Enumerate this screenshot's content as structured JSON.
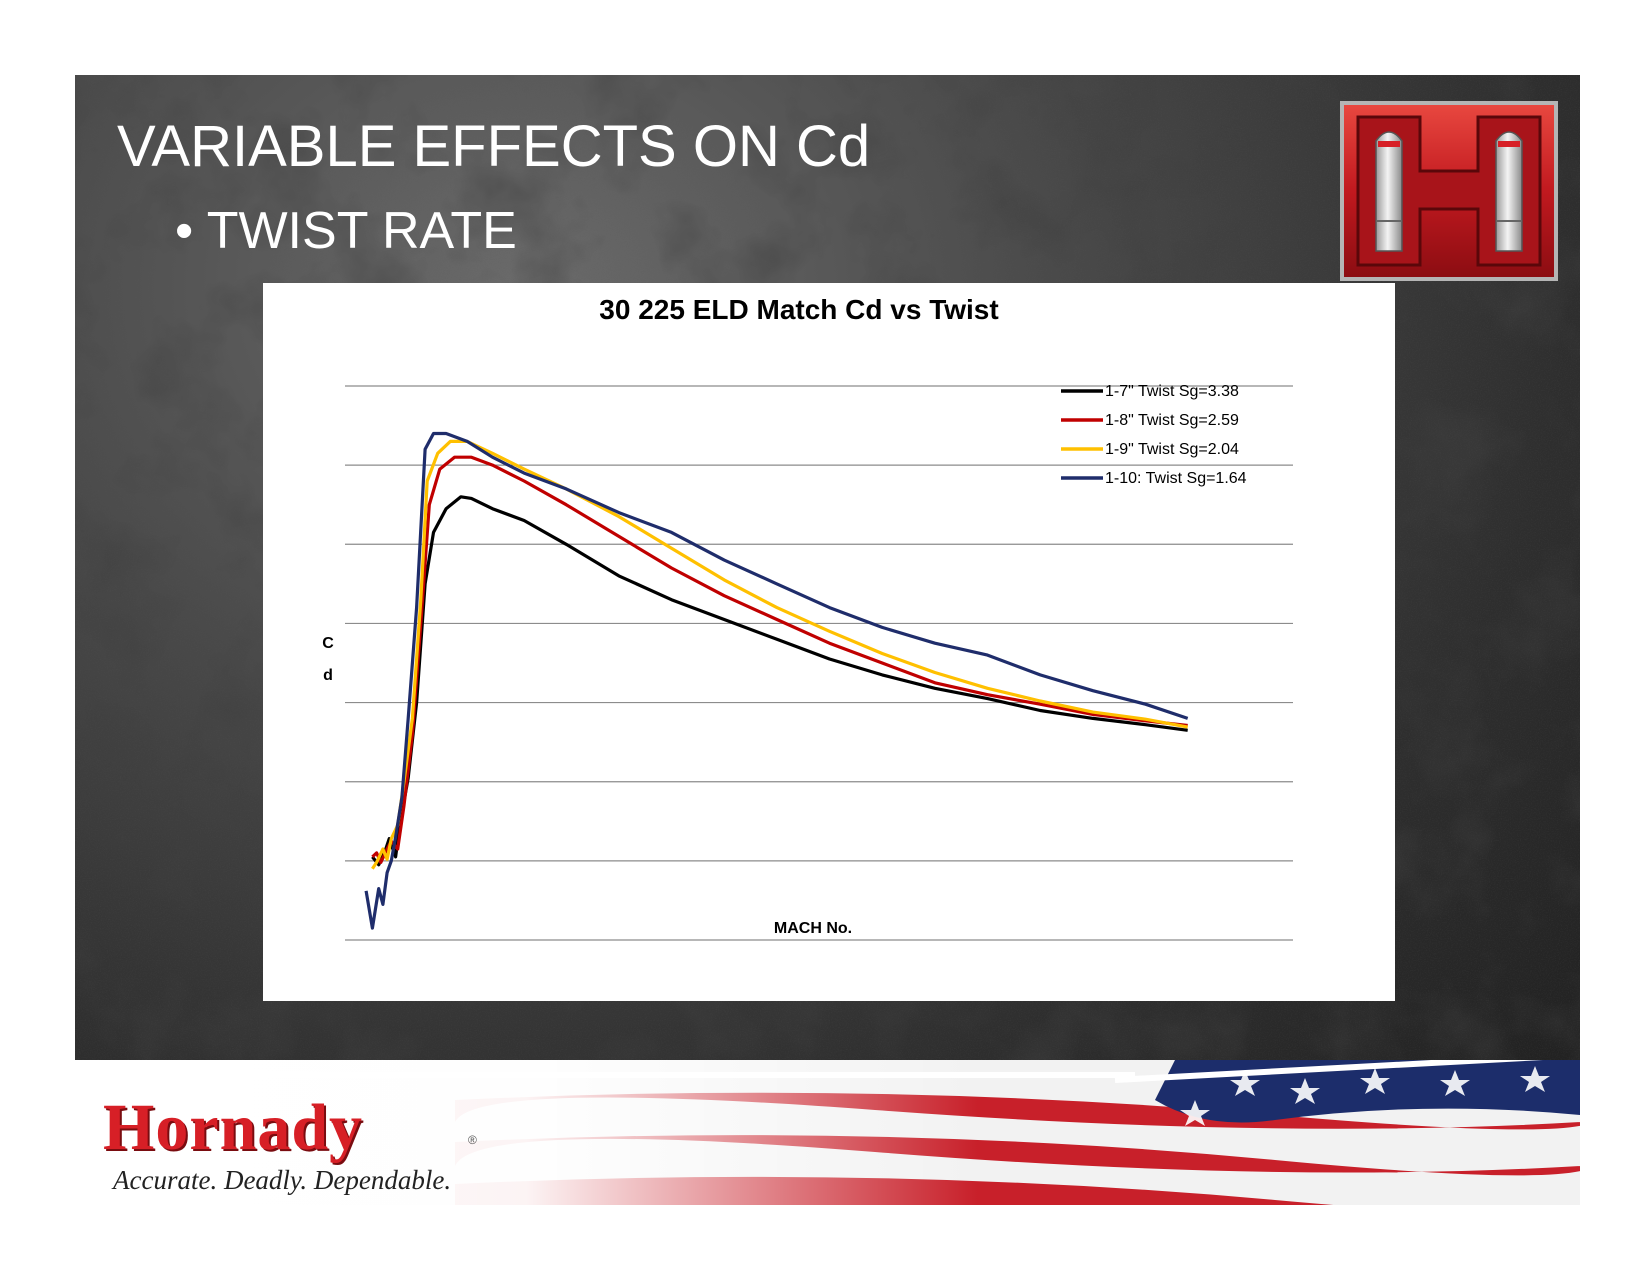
{
  "slide": {
    "title": "VARIABLE EFFECTS ON Cd",
    "subtitle": "• TWIST RATE"
  },
  "footer": {
    "brand": "Hornady",
    "registered_mark": "®",
    "tagline": "Accurate. Deadly. Dependable."
  },
  "colors": {
    "brand_red": "#d71f26",
    "series_black": "#000000",
    "series_red": "#c00000",
    "series_yellow": "#ffc000",
    "series_navy": "#1f2d6b"
  },
  "chart_data": {
    "type": "line",
    "title": "30 225 ELD Match Cd vs Twist",
    "xlabel": "MACH No.",
    "ylabel": "Cd",
    "xlim": [
      0.5,
      5.0
    ],
    "ylim": [
      0,
      7
    ],
    "grid": true,
    "tick_labels_shown": false,
    "legend_position": "top-right",
    "series": [
      {
        "name": "1-7\" Twist Sg=3.38",
        "color": "#000000",
        "points": [
          [
            0.63,
            1.05
          ],
          [
            0.66,
            0.95
          ],
          [
            0.69,
            1.12
          ],
          [
            0.71,
            1.28
          ],
          [
            0.74,
            1.05
          ],
          [
            0.76,
            1.45
          ],
          [
            0.8,
            2.05
          ],
          [
            0.84,
            3.0
          ],
          [
            0.88,
            4.5
          ],
          [
            0.92,
            5.15
          ],
          [
            0.98,
            5.45
          ],
          [
            1.05,
            5.6
          ],
          [
            1.1,
            5.58
          ],
          [
            1.2,
            5.45
          ],
          [
            1.35,
            5.3
          ],
          [
            1.55,
            5.0
          ],
          [
            1.8,
            4.6
          ],
          [
            2.05,
            4.3
          ],
          [
            2.3,
            4.05
          ],
          [
            2.55,
            3.8
          ],
          [
            2.8,
            3.55
          ],
          [
            3.05,
            3.35
          ],
          [
            3.3,
            3.18
          ],
          [
            3.55,
            3.05
          ],
          [
            3.8,
            2.9
          ],
          [
            4.05,
            2.8
          ],
          [
            4.3,
            2.72
          ],
          [
            4.5,
            2.65
          ]
        ]
      },
      {
        "name": "1-8\" Twist Sg=2.59",
        "color": "#c00000",
        "points": [
          [
            0.63,
            1.05
          ],
          [
            0.65,
            1.1
          ],
          [
            0.67,
            0.98
          ],
          [
            0.7,
            1.15
          ],
          [
            0.72,
            1.25
          ],
          [
            0.75,
            1.15
          ],
          [
            0.78,
            1.7
          ],
          [
            0.82,
            2.6
          ],
          [
            0.86,
            4.0
          ],
          [
            0.9,
            5.5
          ],
          [
            0.95,
            5.95
          ],
          [
            1.02,
            6.1
          ],
          [
            1.1,
            6.1
          ],
          [
            1.2,
            6.0
          ],
          [
            1.35,
            5.8
          ],
          [
            1.55,
            5.5
          ],
          [
            1.8,
            5.1
          ],
          [
            2.05,
            4.7
          ],
          [
            2.3,
            4.35
          ],
          [
            2.55,
            4.05
          ],
          [
            2.8,
            3.75
          ],
          [
            3.05,
            3.5
          ],
          [
            3.3,
            3.25
          ],
          [
            3.55,
            3.1
          ],
          [
            3.8,
            2.98
          ],
          [
            4.05,
            2.85
          ],
          [
            4.3,
            2.77
          ],
          [
            4.5,
            2.71
          ]
        ]
      },
      {
        "name": "1-9\" Twist Sg=2.04",
        "color": "#ffc000",
        "points": [
          [
            0.63,
            0.9
          ],
          [
            0.65,
            0.98
          ],
          [
            0.68,
            1.15
          ],
          [
            0.7,
            1.02
          ],
          [
            0.72,
            1.28
          ],
          [
            0.75,
            1.45
          ],
          [
            0.78,
            2.0
          ],
          [
            0.82,
            2.8
          ],
          [
            0.86,
            4.3
          ],
          [
            0.89,
            5.8
          ],
          [
            0.94,
            6.15
          ],
          [
            1.0,
            6.3
          ],
          [
            1.08,
            6.3
          ],
          [
            1.2,
            6.15
          ],
          [
            1.35,
            5.95
          ],
          [
            1.55,
            5.7
          ],
          [
            1.8,
            5.35
          ],
          [
            2.05,
            4.95
          ],
          [
            2.3,
            4.55
          ],
          [
            2.55,
            4.2
          ],
          [
            2.8,
            3.9
          ],
          [
            3.05,
            3.62
          ],
          [
            3.3,
            3.38
          ],
          [
            3.55,
            3.18
          ],
          [
            3.8,
            3.02
          ],
          [
            4.05,
            2.88
          ],
          [
            4.3,
            2.79
          ],
          [
            4.5,
            2.69
          ]
        ]
      },
      {
        "name": "1-10: Twist Sg=1.64",
        "color": "#1f2d6b",
        "points": [
          [
            0.6,
            0.62
          ],
          [
            0.63,
            0.15
          ],
          [
            0.66,
            0.65
          ],
          [
            0.68,
            0.45
          ],
          [
            0.7,
            0.85
          ],
          [
            0.72,
            1.0
          ],
          [
            0.74,
            1.3
          ],
          [
            0.77,
            1.8
          ],
          [
            0.8,
            2.8
          ],
          [
            0.84,
            4.2
          ],
          [
            0.88,
            6.2
          ],
          [
            0.92,
            6.4
          ],
          [
            0.98,
            6.4
          ],
          [
            1.08,
            6.3
          ],
          [
            1.2,
            6.1
          ],
          [
            1.35,
            5.9
          ],
          [
            1.55,
            5.7
          ],
          [
            1.8,
            5.4
          ],
          [
            2.05,
            5.15
          ],
          [
            2.3,
            4.8
          ],
          [
            2.55,
            4.5
          ],
          [
            2.8,
            4.2
          ],
          [
            3.05,
            3.95
          ],
          [
            3.3,
            3.75
          ],
          [
            3.55,
            3.6
          ],
          [
            3.8,
            3.35
          ],
          [
            4.05,
            3.15
          ],
          [
            4.3,
            2.98
          ],
          [
            4.5,
            2.8
          ]
        ]
      }
    ]
  }
}
